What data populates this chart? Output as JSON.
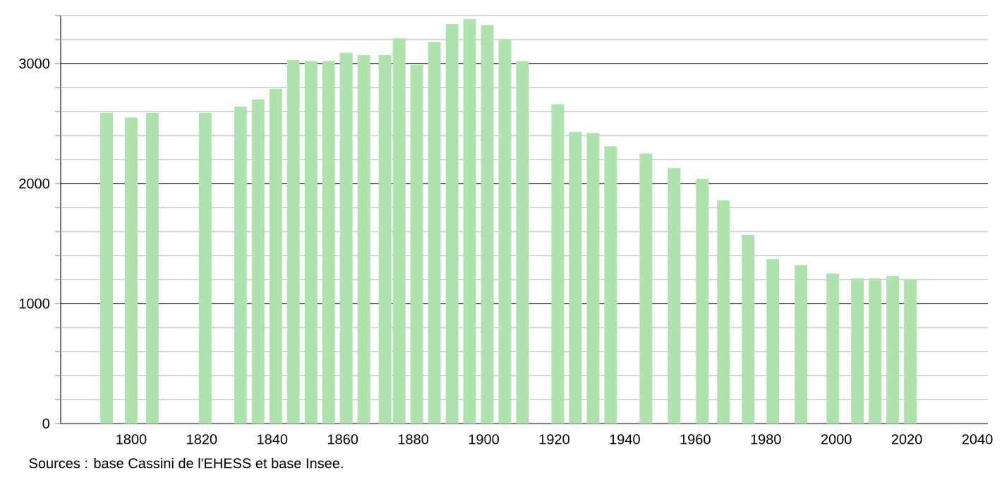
{
  "chart_data": {
    "type": "bar",
    "color": "#b0e2b0",
    "x": [
      1793,
      1800,
      1806,
      1821,
      1831,
      1836,
      1841,
      1846,
      1851,
      1856,
      1861,
      1866,
      1872,
      1876,
      1881,
      1886,
      1891,
      1896,
      1901,
      1906,
      1911,
      1921,
      1926,
      1931,
      1936,
      1946,
      1954,
      1962,
      1968,
      1975,
      1982,
      1990,
      1999,
      2006,
      2011,
      2016,
      2021
    ],
    "values": [
      2590,
      2550,
      2590,
      2590,
      2640,
      2700,
      2790,
      3030,
      3020,
      3020,
      3090,
      3070,
      3070,
      3210,
      2990,
      3180,
      3330,
      3370,
      3320,
      3200,
      3020,
      2660,
      2430,
      2420,
      2310,
      2250,
      2130,
      2040,
      1860,
      1570,
      1370,
      1320,
      1250,
      1210,
      1210,
      1230,
      1200
    ],
    "xlim": [
      1780,
      2043
    ],
    "ylim": [
      0,
      3400
    ],
    "xticks": [
      1800,
      1820,
      1840,
      1860,
      1880,
      1900,
      1920,
      1940,
      1960,
      1980,
      2000,
      2020,
      2040
    ],
    "yticks": [
      0,
      {
        "value": 200,
        "label": null
      },
      {
        "value": 400,
        "label": null
      },
      {
        "value": 600,
        "label": null
      },
      {
        "value": 800,
        "label": null
      },
      1000,
      {
        "value": 1200,
        "label": null
      },
      {
        "value": 1400,
        "label": null
      },
      {
        "value": 1600,
        "label": null
      },
      {
        "value": 1800,
        "label": null
      },
      2000,
      {
        "value": 2200,
        "label": null
      },
      {
        "value": 2400,
        "label": null
      },
      {
        "value": 2600,
        "label": null
      },
      {
        "value": 2800,
        "label": null
      },
      3000,
      {
        "value": 3200,
        "label": null
      },
      {
        "value": 3400,
        "label": null
      }
    ],
    "grid": "y",
    "annotations": [
      "Sources : base Cassini de l'EHESS et base Insee."
    ]
  }
}
